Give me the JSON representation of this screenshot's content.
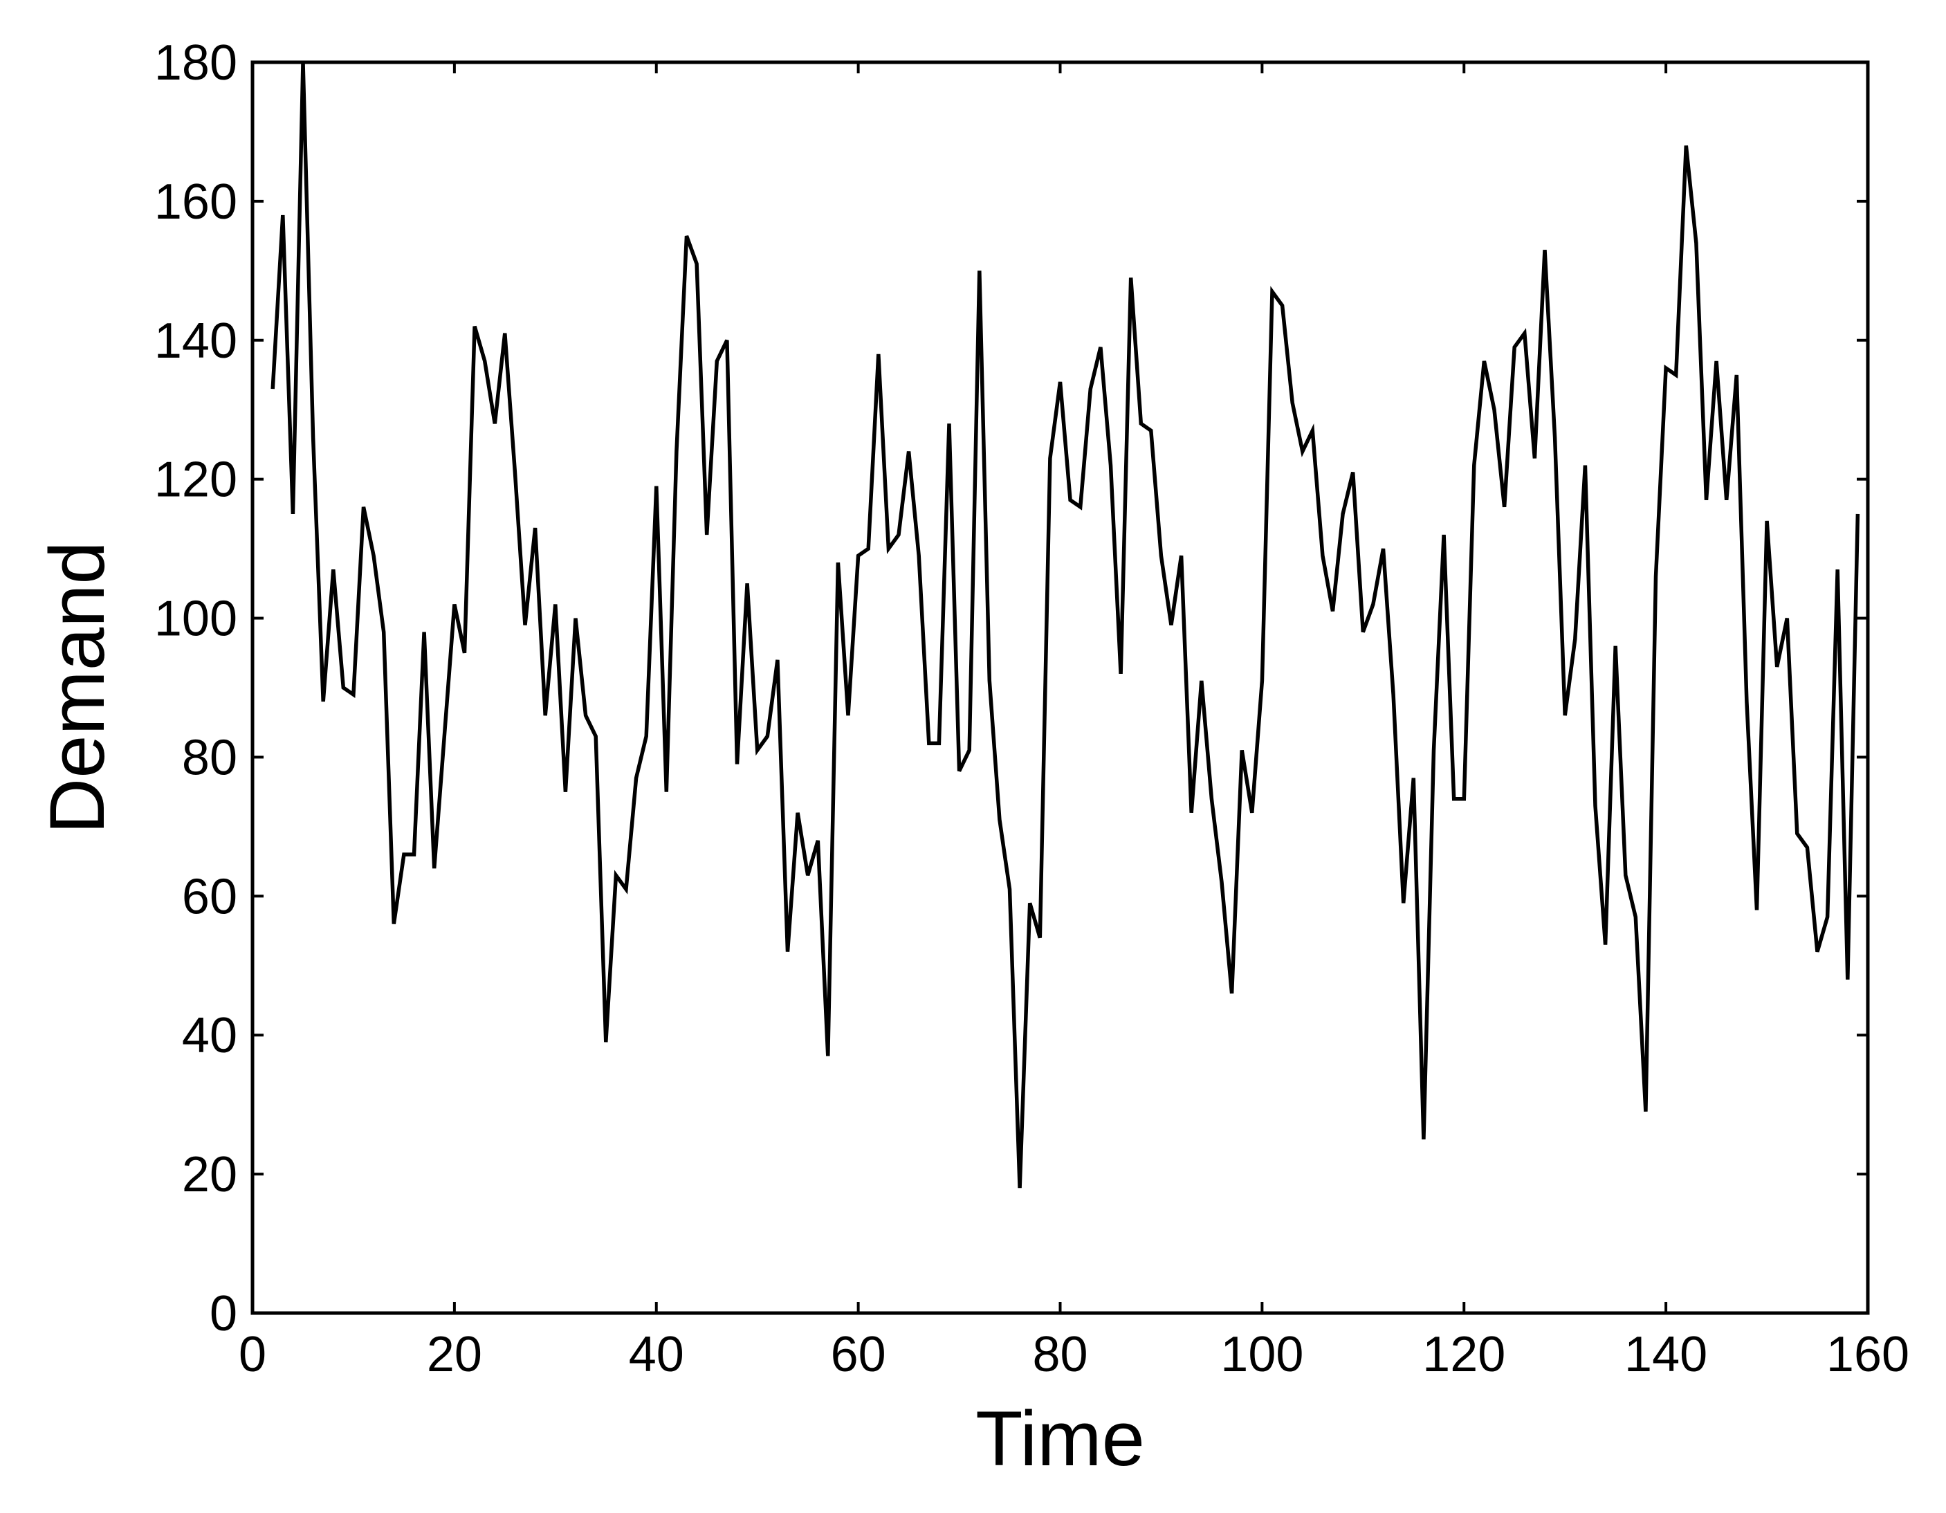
{
  "chart_data": {
    "type": "line",
    "xlabel": "Time",
    "ylabel": "Demand",
    "xlim": [
      0,
      160
    ],
    "ylim": [
      0,
      180
    ],
    "xticks": [
      0,
      20,
      40,
      60,
      80,
      100,
      120,
      140,
      160
    ],
    "yticks": [
      0,
      20,
      40,
      60,
      80,
      100,
      120,
      140,
      160,
      180
    ],
    "grid": false,
    "line_color": "#000000",
    "series": [
      {
        "x": [
          2,
          3,
          4,
          5,
          6,
          7,
          8,
          9,
          10,
          11,
          12,
          13,
          14,
          15,
          16,
          17,
          18,
          19,
          20,
          21,
          22,
          23,
          24,
          25,
          26,
          27,
          28,
          29,
          30,
          31,
          32,
          33,
          34,
          35,
          36,
          37,
          38,
          39,
          40,
          41,
          42,
          43,
          44,
          45,
          46,
          47,
          48,
          49,
          50,
          51,
          52,
          53,
          54,
          55,
          56,
          57,
          58,
          59,
          60,
          61,
          62,
          63,
          64,
          65,
          66,
          67,
          68,
          69,
          70,
          71,
          72,
          73,
          74,
          75,
          76,
          77,
          78,
          79,
          80,
          81,
          82,
          83,
          84,
          85,
          86,
          87,
          88,
          89,
          90,
          91,
          92,
          93,
          94,
          95,
          96,
          97,
          98,
          99,
          100,
          101,
          102,
          103,
          104,
          105,
          106,
          107,
          108,
          109,
          110,
          111,
          112,
          113,
          114,
          115,
          116,
          117,
          118,
          119,
          120,
          121,
          122,
          123,
          124,
          125,
          126,
          127,
          128,
          129,
          130,
          131,
          132,
          133,
          134,
          135,
          136,
          137,
          138,
          139,
          140,
          141,
          142,
          143,
          144,
          145,
          146,
          147,
          148,
          149,
          150,
          151,
          152,
          153,
          154,
          155,
          156,
          157,
          158,
          159
        ],
        "y": [
          133,
          158,
          115,
          180,
          126,
          88,
          107,
          90,
          89,
          116,
          109,
          98,
          56,
          66,
          66,
          98,
          64,
          83,
          102,
          95,
          142,
          137,
          128,
          141,
          121,
          99,
          113,
          86,
          102,
          75,
          100,
          86,
          83,
          39,
          63,
          61,
          77,
          83,
          119,
          75,
          124,
          155,
          151,
          112,
          137,
          140,
          79,
          105,
          81,
          83,
          94,
          52,
          72,
          63,
          68,
          37,
          108,
          86,
          109,
          110,
          138,
          110,
          112,
          124,
          109,
          82,
          82,
          128,
          78,
          81,
          150,
          91,
          71,
          61,
          18,
          59,
          54,
          123,
          134,
          117,
          116,
          133,
          139,
          122,
          92,
          149,
          128,
          127,
          109,
          99,
          109,
          72,
          91,
          74,
          62,
          46,
          81,
          72,
          91,
          147,
          145,
          131,
          124,
          127,
          109,
          101,
          115,
          121,
          98,
          102,
          110,
          89,
          59,
          77,
          25,
          81,
          112,
          74,
          74,
          122,
          137,
          130,
          116,
          139,
          141,
          123,
          153,
          126,
          86,
          97,
          122,
          73,
          53,
          96,
          63,
          57,
          29,
          106,
          136,
          135,
          168,
          154,
          117,
          137,
          117,
          135,
          88,
          58,
          114,
          93,
          100,
          69,
          67,
          52,
          57,
          107,
          48,
          115
        ]
      }
    ]
  }
}
